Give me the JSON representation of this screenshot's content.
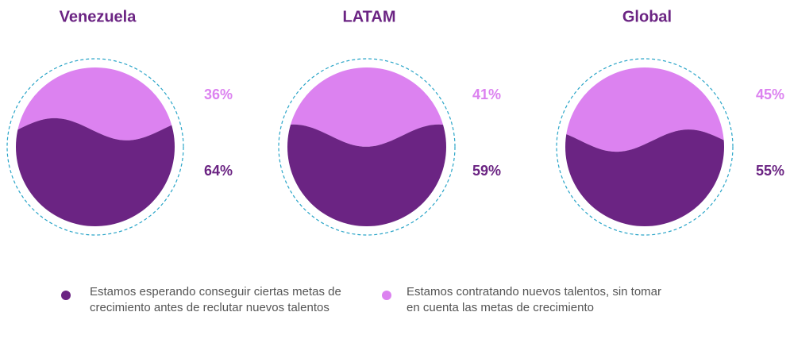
{
  "chart_data": {
    "type": "fill",
    "categories": [
      "Venezuela",
      "LATAM",
      "Global"
    ],
    "series": [
      {
        "name": "Estamos esperando conseguir ciertas metas de crecimiento antes de reclutar nuevos talentos",
        "color": "#6b2483",
        "values": [
          64,
          59,
          55
        ],
        "value_labels": [
          "64%",
          "59%",
          "55%"
        ]
      },
      {
        "name": "Estamos contratando nuevos talentos, sin tomar en cuenta las metas de crecimiento",
        "color": "#dc82f0",
        "values": [
          36,
          41,
          45
        ],
        "value_labels": [
          "36%",
          "41%",
          "45%"
        ]
      }
    ]
  }
}
